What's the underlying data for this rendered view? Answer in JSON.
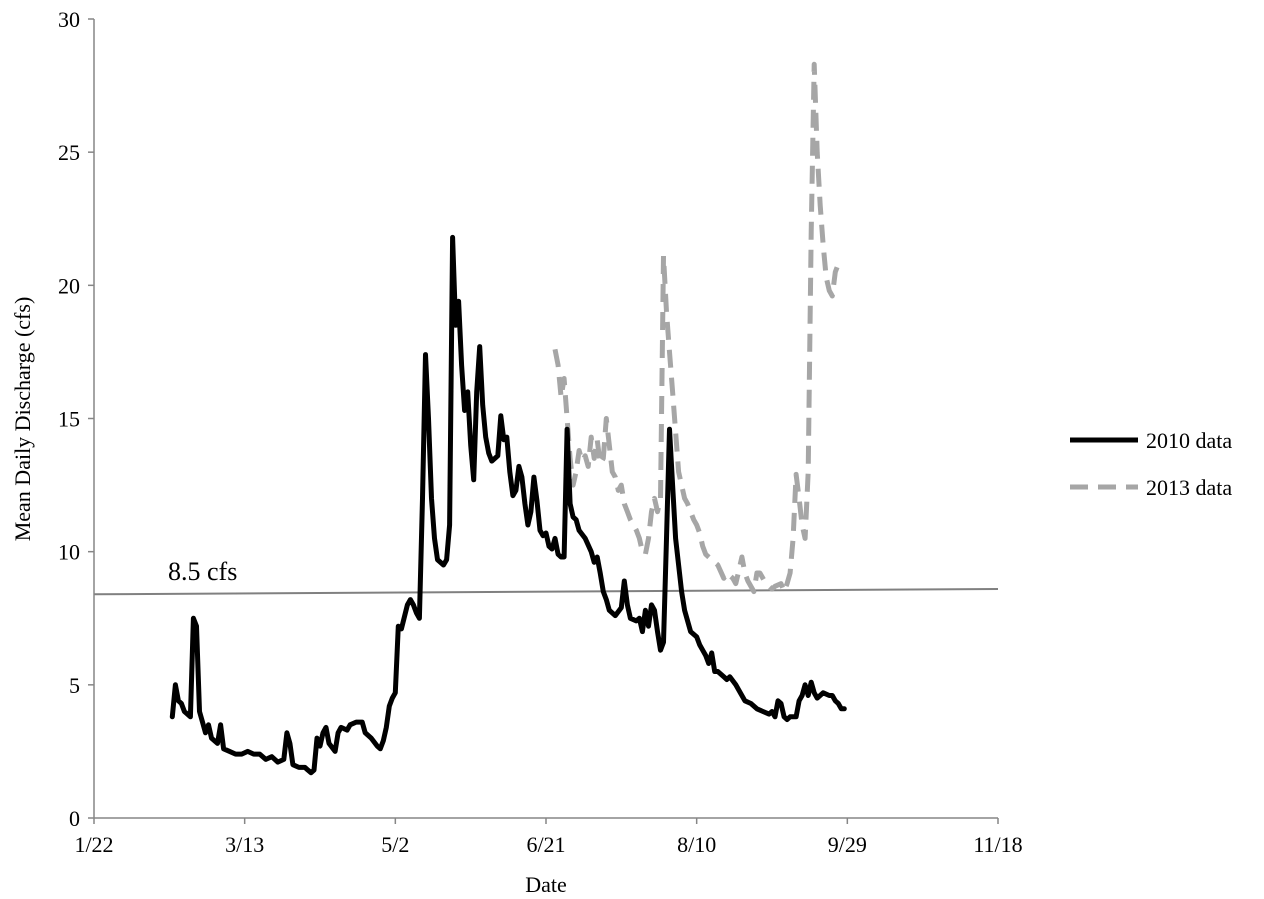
{
  "chart_data": {
    "type": "line",
    "title": "",
    "xlabel": "Date",
    "ylabel": "Mean Daily Discharge (cfs)",
    "xlim": [
      "1/22",
      "11/18"
    ],
    "ylim": [
      0,
      30
    ],
    "x_ticks": [
      "1/22",
      "3/13",
      "5/2",
      "6/21",
      "8/10",
      "9/29",
      "11/18"
    ],
    "y_ticks": [
      "0",
      "5",
      "10",
      "15",
      "20",
      "25",
      "30"
    ],
    "grid": false,
    "legend": "right",
    "annotation": {
      "text": "8.5 cfs",
      "line_from": [
        "1/22",
        8.4
      ],
      "line_to": [
        "11/18",
        8.6
      ]
    },
    "series": [
      {
        "name": "2010 data",
        "style": "solid",
        "color": "#000000",
        "points": [
          [
            "2/17",
            3.8
          ],
          [
            "2/18",
            5.0
          ],
          [
            "2/19",
            4.4
          ],
          [
            "2/20",
            4.3
          ],
          [
            "2/21",
            4.0
          ],
          [
            "2/22",
            3.9
          ],
          [
            "2/23",
            3.8
          ],
          [
            "2/24",
            7.5
          ],
          [
            "2/25",
            7.2
          ],
          [
            "2/26",
            4.0
          ],
          [
            "2/27",
            3.6
          ],
          [
            "2/28",
            3.2
          ],
          [
            "3/1",
            3.5
          ],
          [
            "3/2",
            3.0
          ],
          [
            "3/3",
            2.9
          ],
          [
            "3/4",
            2.8
          ],
          [
            "3/5",
            3.5
          ],
          [
            "3/6",
            2.6
          ],
          [
            "3/8",
            2.5
          ],
          [
            "3/10",
            2.4
          ],
          [
            "3/12",
            2.4
          ],
          [
            "3/14",
            2.5
          ],
          [
            "3/16",
            2.4
          ],
          [
            "3/18",
            2.4
          ],
          [
            "3/20",
            2.2
          ],
          [
            "3/22",
            2.3
          ],
          [
            "3/24",
            2.1
          ],
          [
            "3/26",
            2.2
          ],
          [
            "3/27",
            3.2
          ],
          [
            "3/28",
            2.8
          ],
          [
            "3/29",
            2.0
          ],
          [
            "3/31",
            1.9
          ],
          [
            "4/2",
            1.9
          ],
          [
            "4/3",
            1.8
          ],
          [
            "4/4",
            1.7
          ],
          [
            "4/5",
            1.8
          ],
          [
            "4/6",
            3.0
          ],
          [
            "4/7",
            2.7
          ],
          [
            "4/8",
            3.2
          ],
          [
            "4/9",
            3.4
          ],
          [
            "4/10",
            2.8
          ],
          [
            "4/12",
            2.5
          ],
          [
            "4/13",
            3.2
          ],
          [
            "4/14",
            3.4
          ],
          [
            "4/16",
            3.3
          ],
          [
            "4/17",
            3.5
          ],
          [
            "4/19",
            3.6
          ],
          [
            "4/21",
            3.6
          ],
          [
            "4/22",
            3.2
          ],
          [
            "4/24",
            3.0
          ],
          [
            "4/26",
            2.7
          ],
          [
            "4/27",
            2.6
          ],
          [
            "4/28",
            2.9
          ],
          [
            "4/29",
            3.4
          ],
          [
            "4/30",
            4.2
          ],
          [
            "5/1",
            4.5
          ],
          [
            "5/2",
            4.7
          ],
          [
            "5/3",
            7.2
          ],
          [
            "5/4",
            7.1
          ],
          [
            "5/6",
            8.0
          ],
          [
            "5/7",
            8.2
          ],
          [
            "5/8",
            8.0
          ],
          [
            "5/9",
            7.7
          ],
          [
            "5/10",
            7.5
          ],
          [
            "5/11",
            12.0
          ],
          [
            "5/12",
            17.4
          ],
          [
            "5/13",
            15.0
          ],
          [
            "5/14",
            12.0
          ],
          [
            "5/15",
            10.5
          ],
          [
            "5/16",
            9.7
          ],
          [
            "5/17",
            9.6
          ],
          [
            "5/18",
            9.5
          ],
          [
            "5/19",
            9.7
          ],
          [
            "5/20",
            11.0
          ],
          [
            "5/21",
            21.8
          ],
          [
            "5/22",
            18.5
          ],
          [
            "5/23",
            19.4
          ],
          [
            "5/24",
            17.0
          ],
          [
            "5/25",
            15.3
          ],
          [
            "5/26",
            16.0
          ],
          [
            "5/27",
            14.0
          ],
          [
            "5/28",
            12.7
          ],
          [
            "5/29",
            16.0
          ],
          [
            "5/30",
            17.7
          ],
          [
            "5/31",
            15.5
          ],
          [
            "6/1",
            14.3
          ],
          [
            "6/2",
            13.7
          ],
          [
            "6/3",
            13.4
          ],
          [
            "6/5",
            13.6
          ],
          [
            "6/6",
            15.1
          ],
          [
            "6/7",
            14.2
          ],
          [
            "6/8",
            14.3
          ],
          [
            "6/9",
            13.0
          ],
          [
            "6/10",
            12.1
          ],
          [
            "6/11",
            12.3
          ],
          [
            "6/12",
            13.2
          ],
          [
            "6/13",
            12.8
          ],
          [
            "6/14",
            11.8
          ],
          [
            "6/15",
            11.0
          ],
          [
            "6/16",
            11.5
          ],
          [
            "6/17",
            12.8
          ],
          [
            "6/18",
            11.9
          ],
          [
            "6/19",
            10.8
          ],
          [
            "6/20",
            10.6
          ],
          [
            "6/21",
            10.7
          ],
          [
            "6/22",
            10.2
          ],
          [
            "6/23",
            10.1
          ],
          [
            "6/24",
            10.5
          ],
          [
            "6/25",
            9.9
          ],
          [
            "6/26",
            9.8
          ],
          [
            "6/27",
            9.8
          ],
          [
            "6/28",
            14.6
          ],
          [
            "6/29",
            11.8
          ],
          [
            "6/30",
            11.3
          ],
          [
            "7/1",
            11.2
          ],
          [
            "7/2",
            10.8
          ],
          [
            "7/4",
            10.5
          ],
          [
            "7/6",
            10.0
          ],
          [
            "7/7",
            9.6
          ],
          [
            "7/8",
            9.8
          ],
          [
            "7/9",
            9.2
          ],
          [
            "7/10",
            8.5
          ],
          [
            "7/11",
            8.2
          ],
          [
            "7/12",
            7.8
          ],
          [
            "7/14",
            7.6
          ],
          [
            "7/16",
            7.9
          ],
          [
            "7/17",
            8.9
          ],
          [
            "7/18",
            8.0
          ],
          [
            "7/19",
            7.5
          ],
          [
            "7/21",
            7.4
          ],
          [
            "7/22",
            7.5
          ],
          [
            "7/23",
            7.0
          ],
          [
            "7/24",
            7.8
          ],
          [
            "7/25",
            7.2
          ],
          [
            "7/26",
            8.0
          ],
          [
            "7/27",
            7.8
          ],
          [
            "7/28",
            7.0
          ],
          [
            "7/29",
            6.3
          ],
          [
            "7/30",
            6.6
          ],
          [
            "7/31",
            10.5
          ],
          [
            "8/1",
            14.6
          ],
          [
            "8/2",
            12.5
          ],
          [
            "8/3",
            10.5
          ],
          [
            "8/4",
            9.5
          ],
          [
            "8/5",
            8.5
          ],
          [
            "8/6",
            7.8
          ],
          [
            "8/7",
            7.4
          ],
          [
            "8/8",
            7.0
          ],
          [
            "8/10",
            6.8
          ],
          [
            "8/11",
            6.5
          ],
          [
            "8/12",
            6.3
          ],
          [
            "8/13",
            6.1
          ],
          [
            "8/14",
            5.8
          ],
          [
            "8/15",
            6.2
          ],
          [
            "8/16",
            5.5
          ],
          [
            "8/17",
            5.5
          ],
          [
            "8/19",
            5.3
          ],
          [
            "8/20",
            5.2
          ],
          [
            "8/21",
            5.3
          ],
          [
            "8/23",
            5.0
          ],
          [
            "8/24",
            4.8
          ],
          [
            "8/26",
            4.4
          ],
          [
            "8/28",
            4.3
          ],
          [
            "8/30",
            4.1
          ],
          [
            "9/1",
            4.0
          ],
          [
            "9/3",
            3.9
          ],
          [
            "9/4",
            4.0
          ],
          [
            "9/5",
            3.8
          ],
          [
            "9/6",
            4.4
          ],
          [
            "9/7",
            4.3
          ],
          [
            "9/8",
            3.8
          ],
          [
            "9/9",
            3.7
          ],
          [
            "9/10",
            3.8
          ],
          [
            "9/12",
            3.8
          ],
          [
            "9/13",
            4.4
          ],
          [
            "9/14",
            4.6
          ],
          [
            "9/15",
            5.0
          ],
          [
            "9/16",
            4.6
          ],
          [
            "9/17",
            5.1
          ],
          [
            "9/18",
            4.7
          ],
          [
            "9/19",
            4.5
          ],
          [
            "9/21",
            4.7
          ],
          [
            "9/23",
            4.6
          ],
          [
            "9/24",
            4.6
          ],
          [
            "9/25",
            4.4
          ],
          [
            "9/26",
            4.3
          ],
          [
            "9/27",
            4.1
          ],
          [
            "9/28",
            4.1
          ]
        ]
      },
      {
        "name": "2013 data",
        "style": "dashed",
        "color": "#a6a6a6",
        "points": [
          [
            "6/24",
            17.6
          ],
          [
            "6/25",
            17.0
          ],
          [
            "6/26",
            15.8
          ],
          [
            "6/27",
            16.5
          ],
          [
            "6/28",
            15.0
          ],
          [
            "6/29",
            13.5
          ],
          [
            "6/30",
            12.5
          ],
          [
            "7/1",
            13.0
          ],
          [
            "7/2",
            13.8
          ],
          [
            "7/3",
            13.4
          ],
          [
            "7/4",
            13.6
          ],
          [
            "7/5",
            13.2
          ],
          [
            "7/6",
            14.3
          ],
          [
            "7/7",
            13.5
          ],
          [
            "7/8",
            14.2
          ],
          [
            "7/9",
            13.3
          ],
          [
            "7/10",
            13.5
          ],
          [
            "7/11",
            15.0
          ],
          [
            "7/12",
            14.0
          ],
          [
            "7/13",
            13.0
          ],
          [
            "7/14",
            12.8
          ],
          [
            "7/15",
            12.3
          ],
          [
            "7/16",
            12.5
          ],
          [
            "7/17",
            11.8
          ],
          [
            "7/18",
            11.5
          ],
          [
            "7/19",
            11.2
          ],
          [
            "7/20",
            11.0
          ],
          [
            "7/21",
            10.8
          ],
          [
            "7/22",
            10.5
          ],
          [
            "7/23",
            10.0
          ],
          [
            "7/24",
            9.9
          ],
          [
            "7/25",
            10.5
          ],
          [
            "7/26",
            11.5
          ],
          [
            "7/27",
            12.0
          ],
          [
            "7/28",
            11.5
          ],
          [
            "7/29",
            12.0
          ],
          [
            "7/30",
            21.1
          ],
          [
            "7/31",
            19.0
          ],
          [
            "8/1",
            17.5
          ],
          [
            "8/2",
            16.0
          ],
          [
            "8/3",
            14.5
          ],
          [
            "8/4",
            13.0
          ],
          [
            "8/5",
            12.5
          ],
          [
            "8/6",
            12.0
          ],
          [
            "8/7",
            11.8
          ],
          [
            "8/8",
            11.5
          ],
          [
            "8/9",
            11.2
          ],
          [
            "8/10",
            11.0
          ],
          [
            "8/11",
            10.7
          ],
          [
            "8/12",
            10.2
          ],
          [
            "8/13",
            9.9
          ],
          [
            "8/15",
            9.7
          ],
          [
            "8/17",
            9.5
          ],
          [
            "8/19",
            9.0
          ],
          [
            "8/20",
            9.2
          ],
          [
            "8/22",
            9.0
          ],
          [
            "8/23",
            8.8
          ],
          [
            "8/24",
            9.3
          ],
          [
            "8/25",
            9.8
          ],
          [
            "8/26",
            9.2
          ],
          [
            "8/27",
            8.9
          ],
          [
            "8/29",
            8.5
          ],
          [
            "8/30",
            9.2
          ],
          [
            "8/31",
            9.2
          ],
          [
            "9/2",
            8.8
          ],
          [
            "9/4",
            8.6
          ],
          [
            "9/5",
            8.7
          ],
          [
            "9/7",
            8.8
          ],
          [
            "9/8",
            8.5
          ],
          [
            "9/9",
            8.8
          ],
          [
            "9/10",
            9.2
          ],
          [
            "9/11",
            10.5
          ],
          [
            "9/12",
            12.9
          ],
          [
            "9/13",
            12.0
          ],
          [
            "9/14",
            11.0
          ],
          [
            "9/15",
            10.5
          ],
          [
            "9/16",
            13.0
          ],
          [
            "9/17",
            22.0
          ],
          [
            "9/18",
            28.3
          ],
          [
            "9/19",
            25.0
          ],
          [
            "9/20",
            23.0
          ],
          [
            "9/21",
            21.5
          ],
          [
            "9/22",
            20.3
          ],
          [
            "9/23",
            19.8
          ],
          [
            "9/24",
            19.6
          ],
          [
            "9/25",
            20.5
          ],
          [
            "9/26",
            20.8
          ]
        ]
      }
    ]
  }
}
